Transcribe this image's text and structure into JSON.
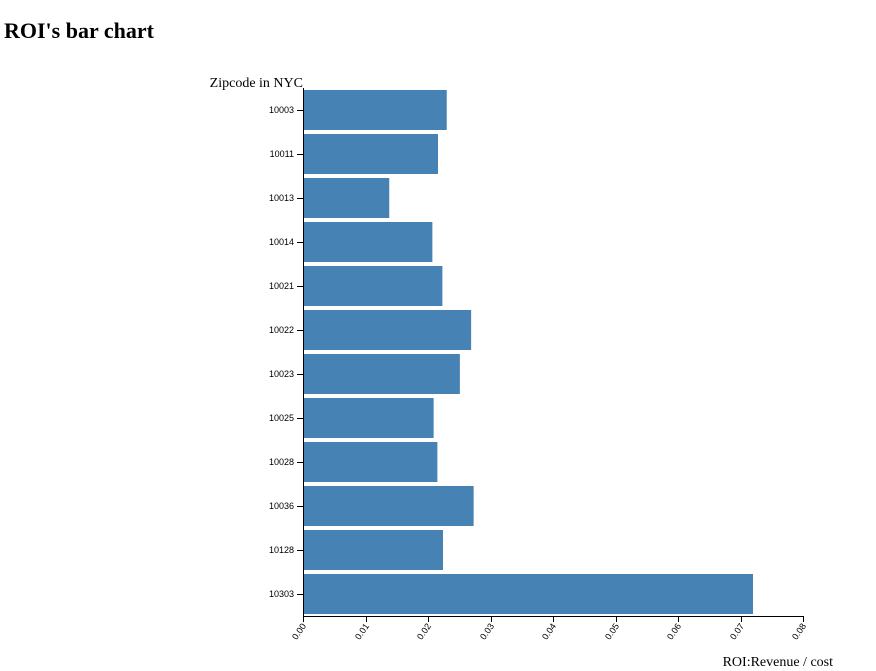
{
  "page": {
    "title": "ROI's bar chart"
  },
  "chart_data": {
    "type": "bar",
    "orientation": "horizontal",
    "title": "",
    "ylabel": "Zipcode in NYC",
    "xlabel": "ROI:Revenue / cost",
    "categories": [
      "10003",
      "10011",
      "10013",
      "10014",
      "10021",
      "10022",
      "10023",
      "10025",
      "10028",
      "10036",
      "10128",
      "10303"
    ],
    "values": [
      0.023,
      0.0216,
      0.0138,
      0.0207,
      0.0223,
      0.0269,
      0.0251,
      0.0209,
      0.0215,
      0.0273,
      0.0224,
      0.072
    ],
    "xlim": [
      0,
      0.08
    ],
    "xticks": [
      "0.00",
      "0.01",
      "0.02",
      "0.03",
      "0.04",
      "0.05",
      "0.06",
      "0.07",
      "0.08"
    ],
    "bar_color": "#4682b4",
    "grid": false,
    "legend": false
  }
}
